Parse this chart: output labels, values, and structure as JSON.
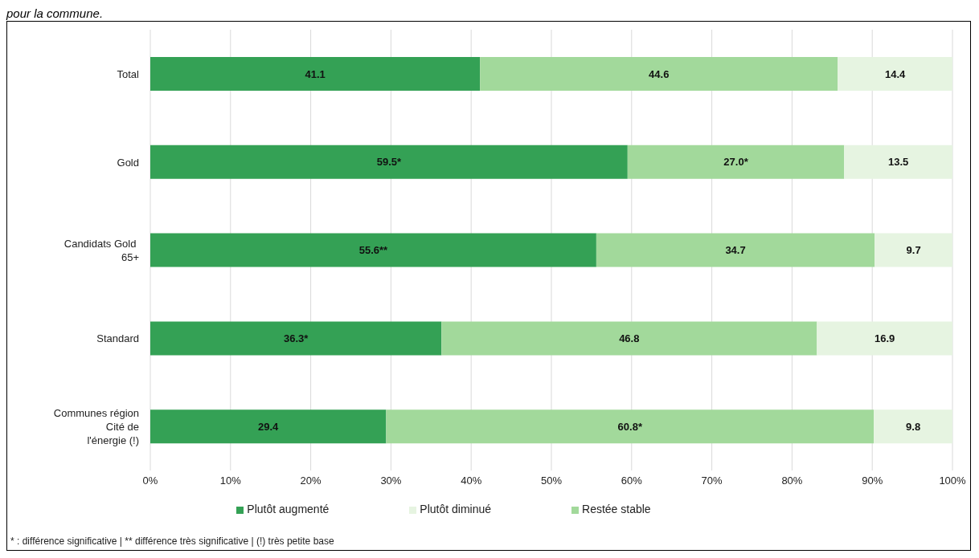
{
  "chart_data": {
    "type": "bar",
    "orientation": "horizontal",
    "stacked": true,
    "title": "pour la commune.",
    "categories": [
      "Total",
      "Gold",
      "Candidats Gold  65+",
      "Standard",
      "Communes région Cité de l'énergie (!)"
    ],
    "series": [
      {
        "name": "Plutôt augmenté",
        "color": "#34a155",
        "values": [
          41.1,
          59.5,
          55.6,
          36.3,
          29.4
        ],
        "value_labels": [
          "41.1",
          "59.5*",
          "55.6**",
          "36.3*",
          "29.4"
        ]
      },
      {
        "name": "Restée stable",
        "color": "#a2d99b",
        "values": [
          44.6,
          27.0,
          34.7,
          46.8,
          60.8
        ],
        "value_labels": [
          "44.6",
          "27.0*",
          "34.7",
          "46.8",
          "60.8*"
        ]
      },
      {
        "name": "Plutôt diminué",
        "color": "#e6f4e1",
        "values": [
          14.4,
          13.5,
          9.7,
          16.9,
          9.8
        ],
        "value_labels": [
          "14.4",
          "13.5",
          "9.7",
          "16.9",
          "9.8"
        ]
      }
    ],
    "xlim": [
      0,
      100
    ],
    "xticks": [
      {
        "value": 0,
        "label": "0%"
      },
      {
        "value": 10,
        "label": "10%"
      },
      {
        "value": 20,
        "label": "20%"
      },
      {
        "value": 30,
        "label": "30%"
      },
      {
        "value": 40,
        "label": "40%"
      },
      {
        "value": 50,
        "label": "50%"
      },
      {
        "value": 60,
        "label": "60%"
      },
      {
        "value": 70,
        "label": "70%"
      },
      {
        "value": 80,
        "label": "80%"
      },
      {
        "value": 90,
        "label": "90%"
      },
      {
        "value": 100,
        "label": "100%"
      }
    ],
    "grid": "x",
    "legend": "bottom",
    "annotations": [
      "* : différence significative | ** différence très significative | (!) très petite base"
    ]
  }
}
